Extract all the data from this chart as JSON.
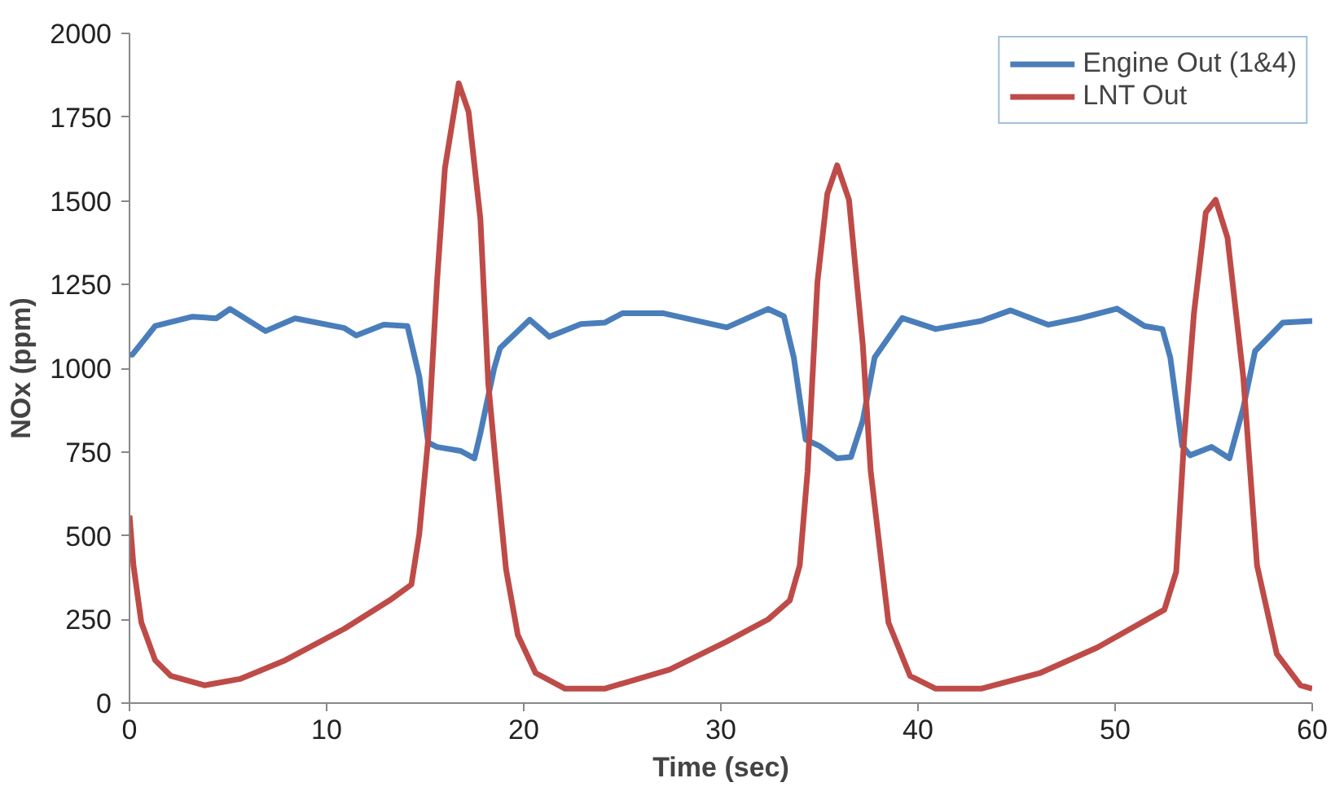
{
  "chart_data": {
    "type": "line",
    "xlabel": "Time (sec)",
    "ylabel": "NOx (ppm)",
    "xlim": [
      0,
      60
    ],
    "xticks": [
      0,
      10,
      20,
      30,
      40,
      50,
      60
    ],
    "ylim": [
      0,
      2000
    ],
    "yticks": [
      0,
      250,
      500,
      750,
      1000,
      1250,
      1500,
      1750,
      2000
    ],
    "grid": false,
    "legend": "top right",
    "marker": "none",
    "line_style": "solid",
    "series": [
      {
        "name": "Engine Out (1&4)",
        "color": "#4a7ebb",
        "x": [
          0,
          0.15,
          1.3,
          3.2,
          4.4,
          5.1,
          6.9,
          8.4,
          10.9,
          11.5,
          12.9,
          14.1,
          14.7,
          15.15,
          15.6,
          16.8,
          17.5,
          17.8,
          18.5,
          18.8,
          20.3,
          21.3,
          22.9,
          24.1,
          25.0,
          27.1,
          30.3,
          32.4,
          33.2,
          33.7,
          34.3,
          35.0,
          35.9,
          36.6,
          37.2,
          37.8,
          39.2,
          40.9,
          43.2,
          44.7,
          46.6,
          48.2,
          50.1,
          51.5,
          52.4,
          52.8,
          53.4,
          53.8,
          54.9,
          55.8,
          56.5,
          57.1,
          58.5,
          60
        ],
        "values": [
          1040,
          1041,
          1126,
          1154,
          1149,
          1177,
          1111,
          1149,
          1120,
          1098,
          1130,
          1126,
          975,
          778,
          765,
          753,
          731,
          806,
          1000,
          1060,
          1145,
          1094,
          1132,
          1136,
          1164,
          1164,
          1122,
          1177,
          1155,
          1032,
          787,
          768,
          731,
          735,
          844,
          1032,
          1150,
          1117,
          1141,
          1173,
          1130,
          1149,
          1178,
          1126,
          1117,
          1032,
          768,
          740,
          765,
          731,
          881,
          1051,
          1136,
          1141
        ]
      },
      {
        "name": "LNT Out",
        "color": "#be4b48",
        "x": [
          0,
          0.2,
          0.6,
          1.3,
          2.1,
          3.8,
          5.6,
          7.9,
          10.9,
          13.2,
          14.3,
          14.7,
          15.15,
          15.6,
          16.0,
          16.7,
          17.2,
          17.8,
          18.2,
          18.6,
          19.1,
          19.7,
          20.6,
          22.1,
          24.1,
          27.4,
          30.3,
          32.4,
          33.5,
          34.0,
          34.4,
          34.9,
          35.4,
          35.9,
          36.5,
          37.2,
          37.6,
          38.5,
          39.6,
          40.9,
          43.2,
          46.2,
          49.1,
          52.5,
          53.1,
          53.5,
          54.0,
          54.6,
          55.1,
          55.7,
          56.5,
          57.2,
          58.2,
          59.4,
          60
        ],
        "values": [
          560,
          411,
          241,
          128,
          81,
          53,
          72,
          128,
          222,
          307,
          354,
          505,
          787,
          1258,
          1597,
          1851,
          1766,
          1446,
          956,
          700,
          400,
          203,
          90,
          43,
          43,
          100,
          184,
          250,
          307,
          411,
          693,
          1258,
          1521,
          1606,
          1503,
          1070,
          693,
          241,
          81,
          43,
          43,
          90,
          166,
          279,
          392,
          787,
          1164,
          1465,
          1503,
          1390,
          975,
          411,
          147,
          53,
          43
        ]
      }
    ]
  }
}
